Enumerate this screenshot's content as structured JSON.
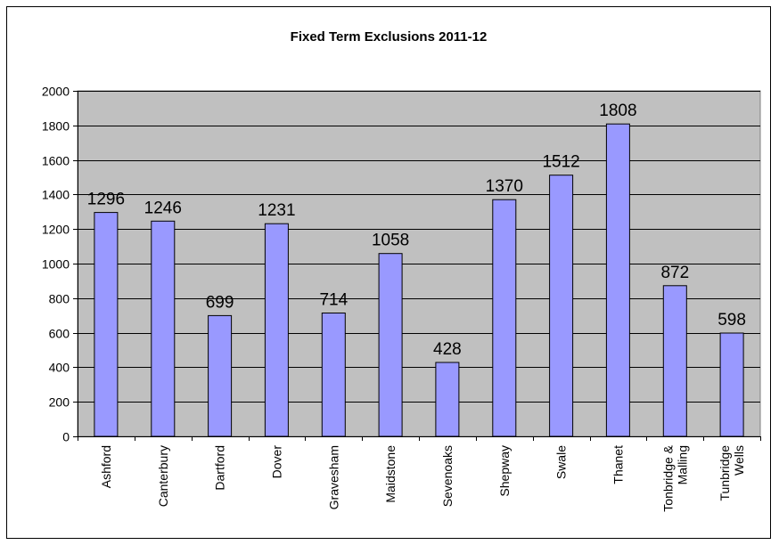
{
  "chart_data": {
    "type": "bar",
    "title": "Fixed Term Exclusions 2011-12",
    "xlabel": "",
    "ylabel": "",
    "categories": [
      [
        "Ashford"
      ],
      [
        "Canterbury"
      ],
      [
        "Dartford"
      ],
      [
        "Dover"
      ],
      [
        "Gravesham"
      ],
      [
        "Maidstone"
      ],
      [
        "Sevenoaks"
      ],
      [
        "Shepway"
      ],
      [
        "Swale"
      ],
      [
        "Thanet"
      ],
      [
        "Tonbridge &",
        "Malling"
      ],
      [
        "Tunbridge",
        "Wells"
      ]
    ],
    "values": [
      1296,
      1246,
      699,
      1231,
      714,
      1058,
      428,
      1370,
      1512,
      1808,
      872,
      598
    ],
    "ylim": [
      0,
      2000
    ],
    "yticks": [
      0,
      200,
      400,
      600,
      800,
      1000,
      1200,
      1400,
      1600,
      1800,
      2000
    ],
    "grid": true,
    "legend": "none",
    "data_labels": true,
    "colors": {
      "bar_fill": "#9999ff",
      "bar_stroke": "#000000",
      "plot_background": "#c0c0c0",
      "gridline": "#000000"
    }
  }
}
